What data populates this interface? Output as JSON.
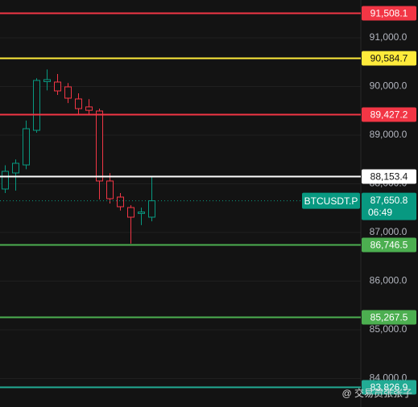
{
  "chart_data": {
    "type": "candlestick",
    "categories": [
      null,
      null,
      null,
      null,
      null,
      null,
      null,
      null,
      null,
      null,
      null,
      null,
      null,
      null,
      null
    ],
    "open": [
      87893,
      88223,
      88388,
      89099,
      90100,
      90091,
      89992,
      89744,
      89580,
      89496,
      88058,
      87727,
      87512,
      87390,
      87314
    ],
    "high": [
      88380,
      88500,
      89300,
      90170,
      90350,
      90256,
      90070,
      89860,
      89740,
      89545,
      88220,
      87810,
      87560,
      87510,
      88150
    ],
    "low": [
      87810,
      87860,
      88300,
      89050,
      89920,
      89826,
      89660,
      89430,
      89410,
      87680,
      87595,
      87450,
      86770,
      87150,
      87230
    ],
    "close": [
      88256,
      88421,
      89132,
      90124,
      90140,
      89909,
      89760,
      89545,
      89510,
      88058,
      87694,
      87529,
      87314,
      87420,
      87650.8
    ],
    "up_color": "#089981",
    "down_color": "#f23645",
    "ylim": [
      83413,
      91777
    ],
    "yticks": [
      {
        "value": 84000,
        "label": "84,000.0"
      },
      {
        "value": 85000,
        "label": "85,000.0"
      },
      {
        "value": 86000,
        "label": "86,000.0"
      },
      {
        "value": 87000,
        "label": "87,000.0"
      },
      {
        "value": 88000,
        "label": "88,000.0"
      },
      {
        "value": 89000,
        "label": "89,000.0"
      },
      {
        "value": 90000,
        "label": "90,000.0"
      },
      {
        "value": 91000,
        "label": "91,000.0"
      }
    ],
    "grid": true,
    "price_lines": [
      {
        "value": 91508.1,
        "label": "91,508.1",
        "color": "#f23645"
      },
      {
        "value": 90584.7,
        "label": "90,584.7",
        "color": "#ffeb3b"
      },
      {
        "value": 89427.2,
        "label": "89,427.2",
        "color": "#f23645"
      },
      {
        "value": 88153.4,
        "label": "88,153.4",
        "color": "#ffffff"
      },
      {
        "value": 86746.5,
        "label": "86,746.5",
        "color": "#4caf50"
      },
      {
        "value": 85267.5,
        "label": "85,267.5",
        "color": "#4caf50"
      },
      {
        "value": 83826.9,
        "label": "83,826.9",
        "color": "#22ab94"
      }
    ],
    "last_price": {
      "value": 87650.8,
      "label": "87,650.8",
      "symbol": "BTCUSDT.P",
      "countdown": "06:49",
      "color": "#089981"
    },
    "watermark": "@ 交易员张张子"
  }
}
